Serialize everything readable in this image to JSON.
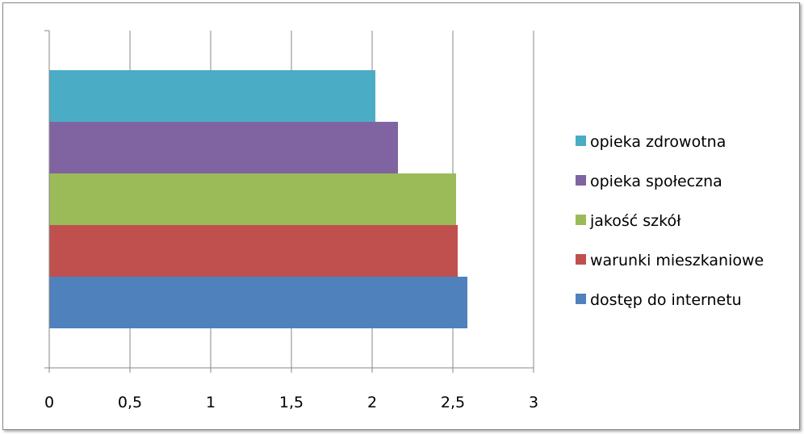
{
  "chart_data": {
    "type": "bar",
    "orientation": "horizontal",
    "categories": [
      "dostęp do internetu",
      "warunki mieszkaniowe",
      "jakość szkół",
      "opieka społeczna",
      "opieka zdrowotna"
    ],
    "series": [
      {
        "name": "dostęp do internetu",
        "value": 2.59,
        "color": "#4F81BD"
      },
      {
        "name": "warunki mieszkaniowe",
        "value": 2.53,
        "color": "#C0504D"
      },
      {
        "name": "jakość szkół",
        "value": 2.52,
        "color": "#9BBB59"
      },
      {
        "name": "opieka społeczna",
        "value": 2.16,
        "color": "#8064A2"
      },
      {
        "name": "opieka zdrowotna",
        "value": 2.02,
        "color": "#4BACC6"
      }
    ],
    "xlim": [
      0,
      3
    ],
    "xticks": [
      0,
      0.5,
      1,
      1.5,
      2,
      2.5,
      3
    ],
    "xtick_labels": [
      "0",
      "0,5",
      "1",
      "1,5",
      "2",
      "2,5",
      "3"
    ],
    "grid": true,
    "legend": "right",
    "title": "",
    "xlabel": "",
    "ylabel": ""
  }
}
